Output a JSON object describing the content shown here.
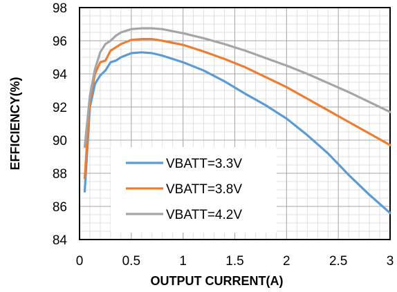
{
  "chart_data": {
    "type": "line",
    "title": "",
    "xlabel": "OUTPUT CURRENT(A)",
    "ylabel": "EFFICIENCY(%)",
    "xlim": [
      0,
      3
    ],
    "ylim": [
      84,
      98
    ],
    "x_ticks": [
      0,
      0.5,
      1,
      1.5,
      2,
      2.5,
      3
    ],
    "x_tick_labels": [
      "0",
      "0.5",
      "1",
      "1.5",
      "2",
      "2.5",
      "3"
    ],
    "y_ticks": [
      84,
      86,
      88,
      90,
      92,
      94,
      96,
      98
    ],
    "y_tick_labels": [
      "84",
      "86",
      "88",
      "90",
      "92",
      "94",
      "96",
      "98"
    ],
    "grid": "major and minor",
    "legend_placement": "lower-left inside plot",
    "series": [
      {
        "name": "VBATT=3.3V",
        "color": "#5B9BD5",
        "x": [
          0.05,
          0.1,
          0.15,
          0.2,
          0.25,
          0.3,
          0.35,
          0.4,
          0.5,
          0.6,
          0.7,
          0.8,
          1.0,
          1.2,
          1.4,
          1.6,
          1.8,
          2.0,
          2.2,
          2.4,
          2.6,
          2.8,
          3.0
        ],
        "values": [
          86.9,
          92.0,
          93.4,
          93.9,
          94.2,
          94.7,
          94.8,
          95.0,
          95.25,
          95.3,
          95.25,
          95.1,
          94.7,
          94.2,
          93.55,
          92.8,
          92.1,
          91.3,
          90.3,
          89.2,
          87.9,
          86.7,
          85.6
        ]
      },
      {
        "name": "VBATT=3.8V",
        "color": "#ED7D31",
        "x": [
          0.05,
          0.1,
          0.15,
          0.2,
          0.25,
          0.3,
          0.35,
          0.4,
          0.5,
          0.6,
          0.7,
          0.8,
          1.0,
          1.2,
          1.4,
          1.6,
          1.8,
          2.0,
          2.2,
          2.4,
          2.6,
          2.8,
          3.0
        ],
        "values": [
          87.7,
          92.4,
          94.0,
          94.7,
          94.8,
          95.4,
          95.6,
          95.8,
          96.05,
          96.1,
          96.1,
          96.0,
          95.75,
          95.35,
          94.9,
          94.4,
          93.8,
          93.2,
          92.5,
          91.8,
          91.1,
          90.4,
          89.7
        ]
      },
      {
        "name": "VBATT=4.2V",
        "color": "#A5A5A5",
        "x": [
          0.05,
          0.1,
          0.15,
          0.2,
          0.25,
          0.3,
          0.35,
          0.4,
          0.5,
          0.6,
          0.7,
          0.8,
          1.0,
          1.2,
          1.4,
          1.6,
          1.8,
          2.0,
          2.2,
          2.4,
          2.6,
          2.8,
          3.0
        ],
        "values": [
          89.6,
          92.7,
          94.3,
          95.3,
          95.8,
          96.0,
          96.3,
          96.5,
          96.7,
          96.75,
          96.75,
          96.7,
          96.45,
          96.15,
          95.8,
          95.4,
          94.95,
          94.5,
          94.0,
          93.45,
          92.9,
          92.3,
          91.7
        ]
      }
    ]
  }
}
